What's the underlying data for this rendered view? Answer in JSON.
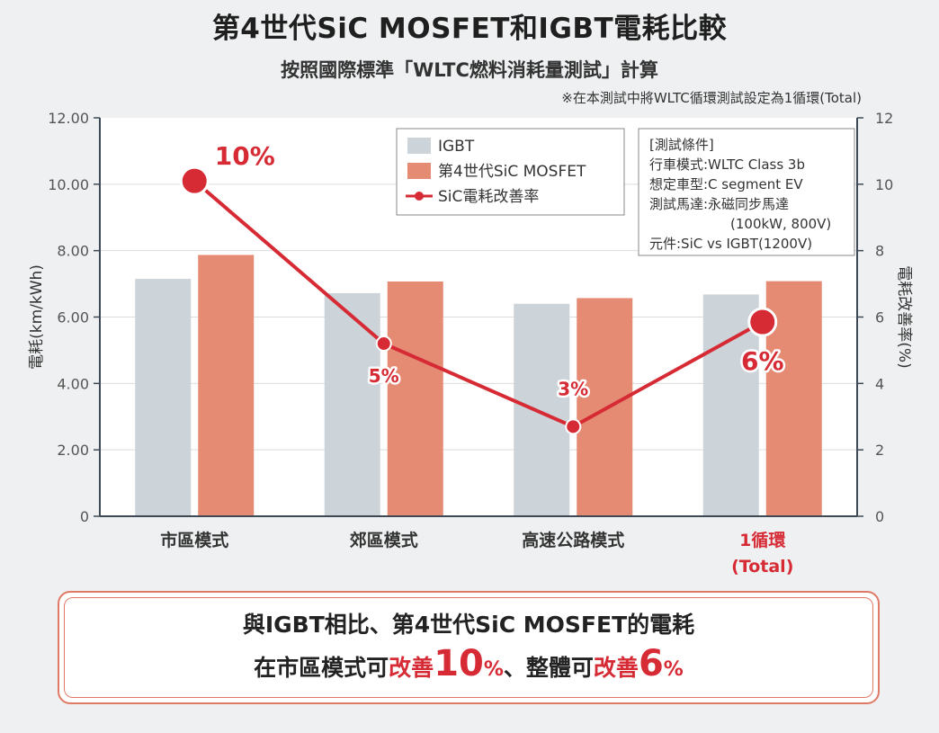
{
  "title": "第4世代SiC MOSFET和IGBT電耗比較",
  "subtitle": "按照國際標準「WLTC燃料消耗量測試」計算",
  "note": "※在本測試中將WLTC循環測試設定為1循環(Total)",
  "colors": {
    "igbt": "#ccd3d9",
    "mosfet": "#e58a73",
    "improvement": "#d62b35",
    "axis": "#3d4a56"
  },
  "chart_data": {
    "type": "bar",
    "categories": [
      "市區模式",
      "郊區模式",
      "高速公路模式",
      "1循環"
    ],
    "category_sublabels": [
      "",
      "",
      "",
      "(Total)"
    ],
    "highlight_category_index": 3,
    "series": [
      {
        "name": "IGBT",
        "type": "bar",
        "axis": "left",
        "values": [
          7.15,
          6.72,
          6.4,
          6.68
        ]
      },
      {
        "name": "第4世代SiC MOSFET",
        "type": "bar",
        "axis": "left",
        "values": [
          7.87,
          7.07,
          6.57,
          7.08
        ]
      },
      {
        "name": "SiC電耗改善率",
        "type": "line",
        "axis": "right",
        "values": [
          10.1,
          5.2,
          2.7,
          5.85
        ]
      }
    ],
    "point_labels": [
      "10%",
      "5%",
      "3%",
      "6%"
    ],
    "ylabel": "電耗(km/kWh)",
    "y2label": "電耗改善率(%)",
    "ylim": [
      0,
      12
    ],
    "y2lim": [
      0,
      12
    ],
    "yticks": [
      "0",
      "2.00",
      "4.00",
      "6.00",
      "8.00",
      "10.00",
      "12.00"
    ],
    "y2ticks": [
      "0",
      "2",
      "4",
      "6",
      "8",
      "10",
      "12"
    ],
    "legend_position": "top-center",
    "conditions": {
      "title": "[測試條件]",
      "lines": [
        "行車模式:WLTC Class 3b",
        "想定車型:C segment EV",
        "測試馬達:永磁同步馬達",
        "(100kW, 800V)",
        "元件:SiC vs IGBT(1200V)"
      ]
    }
  },
  "conclusion": {
    "line1": "與IGBT相比、第4世代SiC MOSFET的電耗",
    "line2_part1": "在市區模式可",
    "line2_hl1": "改善",
    "line2_num1": "10",
    "line2_pct1": "%",
    "line2_part2": "、整體可",
    "line2_hl2": "改善",
    "line2_num2": "6",
    "line2_pct2": "%"
  }
}
